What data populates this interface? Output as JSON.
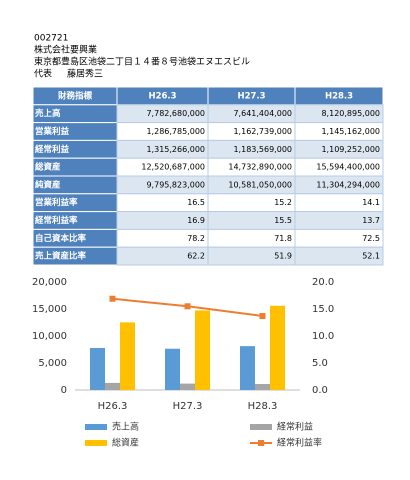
{
  "header": {
    "code": "002721",
    "company": "株式会社要興業",
    "address": "東京都豊島区池袋二丁目１４番８号池袋エヌエスビル",
    "representative_title": "代表",
    "representative": "藤居秀三"
  },
  "table": {
    "columns": [
      "財務指標",
      "H26.3",
      "H27.3",
      "H28.3"
    ],
    "rows": [
      [
        "売上高",
        "7,782,680,000",
        "7,641,404,000",
        "8,120,895,000"
      ],
      [
        "営業利益",
        "1,286,785,000",
        "1,162,739,000",
        "1,145,162,000"
      ],
      [
        "経常利益",
        "1,315,266,000",
        "1,183,569,000",
        "1,109,252,000"
      ],
      [
        "総資産",
        "12,520,687,000",
        "14,732,890,000",
        "15,594,400,000"
      ],
      [
        "純資産",
        "9,795,823,000",
        "10,581,050,000",
        "11,304,294,000"
      ],
      [
        "営業利益率",
        "16.5",
        "15.2",
        "14.1"
      ],
      [
        "経常利益率",
        "16.9",
        "15.5",
        "13.7"
      ],
      [
        "自己資本比率",
        "78.2",
        "71.8",
        "72.5"
      ],
      [
        "売上資産比率",
        "62.2",
        "51.9",
        "52.1"
      ]
    ]
  },
  "chart_data": {
    "type": "bar",
    "categories": [
      "H26.3",
      "H27.3",
      "H28.3"
    ],
    "series": [
      {
        "name": "売上高",
        "color": "#5b9bd5",
        "values": [
          7783,
          7641,
          8121
        ]
      },
      {
        "name": "経常利益",
        "color": "#a5a5a5",
        "values": [
          1315,
          1184,
          1109
        ]
      },
      {
        "name": "総資産",
        "color": "#ffc000",
        "values": [
          12521,
          14733,
          15594
        ]
      },
      {
        "name": "経常利益率",
        "color": "#ed7d31",
        "type": "line",
        "axis": "y2",
        "values": [
          16.9,
          15.5,
          13.7
        ]
      }
    ],
    "ylim": [
      0,
      20000
    ],
    "yticks": [
      {
        "value": 0,
        "label": "0"
      },
      {
        "value": 5000,
        "label": "5,000"
      },
      {
        "value": 10000,
        "label": "10,000"
      },
      {
        "value": 15000,
        "label": "15,000"
      },
      {
        "value": 20000,
        "label": "20,000"
      }
    ],
    "y2lim": [
      0,
      20
    ],
    "y2ticks": [
      {
        "value": 0,
        "label": "0.0"
      },
      {
        "value": 5,
        "label": "5.0"
      },
      {
        "value": 10,
        "label": "10.0"
      },
      {
        "value": 15,
        "label": "15.0"
      },
      {
        "value": 20,
        "label": "20.0"
      }
    ],
    "grid": false
  }
}
